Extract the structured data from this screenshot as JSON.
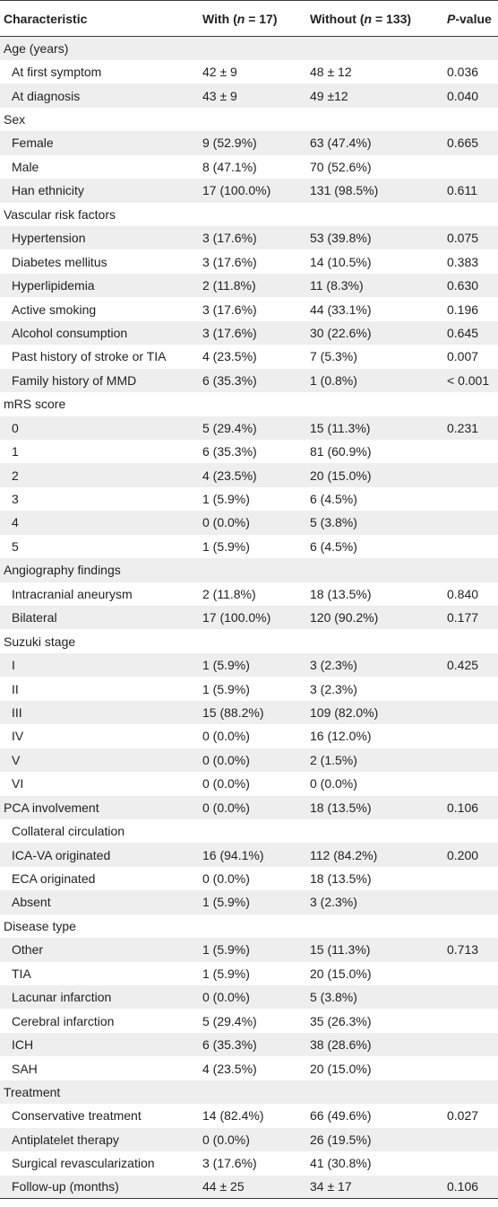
{
  "table": {
    "headers": {
      "characteristic": "Characteristic",
      "with_pre": "With (",
      "with_n": "n",
      "with_post": " = 17)",
      "without_pre": "Without (",
      "without_n": "n",
      "without_post": " = 133)",
      "p_letter": "P",
      "p_rest": "-value"
    },
    "rows": [
      {
        "label": "Age (years)",
        "indent": false,
        "with": "",
        "without": "",
        "p": ""
      },
      {
        "label": "At first symptom",
        "indent": true,
        "with": "42 ± 9",
        "without": "48 ± 12",
        "p": "0.036"
      },
      {
        "label": "At diagnosis",
        "indent": true,
        "with": "43 ± 9",
        "without": "49 ±12",
        "p": "0.040"
      },
      {
        "label": "Sex",
        "indent": false,
        "with": "",
        "without": "",
        "p": ""
      },
      {
        "label": "Female",
        "indent": true,
        "with": "9 (52.9%)",
        "without": "63 (47.4%)",
        "p": "0.665"
      },
      {
        "label": "Male",
        "indent": true,
        "with": "8 (47.1%)",
        "without": "70 (52.6%)",
        "p": ""
      },
      {
        "label": "Han ethnicity",
        "indent": true,
        "with": "17 (100.0%)",
        "without": "131 (98.5%)",
        "p": "0.611"
      },
      {
        "label": "Vascular risk factors",
        "indent": false,
        "with": "",
        "without": "",
        "p": ""
      },
      {
        "label": "Hypertension",
        "indent": true,
        "with": "3 (17.6%)",
        "without": "53 (39.8%)",
        "p": "0.075"
      },
      {
        "label": "Diabetes mellitus",
        "indent": true,
        "with": "3 (17.6%)",
        "without": "14 (10.5%)",
        "p": "0.383"
      },
      {
        "label": "Hyperlipidemia",
        "indent": true,
        "with": "2 (11.8%)",
        "without": "11 (8.3%)",
        "p": "0.630"
      },
      {
        "label": "Active smoking",
        "indent": true,
        "with": "3 (17.6%)",
        "without": "44 (33.1%)",
        "p": "0.196"
      },
      {
        "label": "Alcohol consumption",
        "indent": true,
        "with": "3 (17.6%)",
        "without": "30 (22.6%)",
        "p": "0.645"
      },
      {
        "label": "Past history of stroke or TIA",
        "indent": true,
        "with": "4 (23.5%)",
        "without": "7 (5.3%)",
        "p": "0.007"
      },
      {
        "label": "Family history of MMD",
        "indent": true,
        "with": "6 (35.3%)",
        "without": "1 (0.8%)",
        "p": "< 0.001"
      },
      {
        "label": "mRS score",
        "indent": false,
        "with": "",
        "without": "",
        "p": ""
      },
      {
        "label": "0",
        "indent": true,
        "with": "5 (29.4%)",
        "without": "15 (11.3%)",
        "p": "0.231"
      },
      {
        "label": "1",
        "indent": true,
        "with": "6 (35.3%)",
        "without": "81 (60.9%)",
        "p": ""
      },
      {
        "label": "2",
        "indent": true,
        "with": "4 (23.5%)",
        "without": "20 (15.0%)",
        "p": ""
      },
      {
        "label": "3",
        "indent": true,
        "with": "1 (5.9%)",
        "without": "6 (4.5%)",
        "p": ""
      },
      {
        "label": "4",
        "indent": true,
        "with": "0 (0.0%)",
        "without": "5 (3.8%)",
        "p": ""
      },
      {
        "label": "5",
        "indent": true,
        "with": "1 (5.9%)",
        "without": "6 (4.5%)",
        "p": ""
      },
      {
        "label": "Angiography findings",
        "indent": false,
        "with": "",
        "without": "",
        "p": ""
      },
      {
        "label": "Intracranial aneurysm",
        "indent": true,
        "with": "2 (11.8%)",
        "without": "18 (13.5%)",
        "p": "0.840"
      },
      {
        "label": "Bilateral",
        "indent": true,
        "with": "17 (100.0%)",
        "without": "120 (90.2%)",
        "p": "0.177"
      },
      {
        "label": "Suzuki stage",
        "indent": false,
        "with": "",
        "without": "",
        "p": ""
      },
      {
        "label": "I",
        "indent": true,
        "with": "1 (5.9%)",
        "without": "3 (2.3%)",
        "p": "0.425"
      },
      {
        "label": "II",
        "indent": true,
        "with": "1 (5.9%)",
        "without": "3 (2.3%)",
        "p": ""
      },
      {
        "label": "III",
        "indent": true,
        "with": "15 (88.2%)",
        "without": "109 (82.0%)",
        "p": ""
      },
      {
        "label": "IV",
        "indent": true,
        "with": "0 (0.0%)",
        "without": "16 (12.0%)",
        "p": ""
      },
      {
        "label": "V",
        "indent": true,
        "with": "0 (0.0%)",
        "without": "2 (1.5%)",
        "p": ""
      },
      {
        "label": "VI",
        "indent": true,
        "with": "0 (0.0%)",
        "without": "0 (0.0%)",
        "p": ""
      },
      {
        "label": "PCA involvement",
        "indent": false,
        "with": "0 (0.0%)",
        "without": "18 (13.5%)",
        "p": "0.106"
      },
      {
        "label": "Collateral circulation",
        "indent": true,
        "with": "",
        "without": "",
        "p": ""
      },
      {
        "label": "ICA-VA originated",
        "indent": true,
        "with": "16 (94.1%)",
        "without": "112 (84.2%)",
        "p": "0.200"
      },
      {
        "label": "ECA originated",
        "indent": true,
        "with": "0 (0.0%)",
        "without": "18 (13.5%)",
        "p": ""
      },
      {
        "label": "Absent",
        "indent": true,
        "with": "1 (5.9%)",
        "without": "3 (2.3%)",
        "p": ""
      },
      {
        "label": "Disease type",
        "indent": false,
        "with": "",
        "without": "",
        "p": ""
      },
      {
        "label": "Other",
        "indent": true,
        "with": "1 (5.9%)",
        "without": "15 (11.3%)",
        "p": "0.713"
      },
      {
        "label": "TIA",
        "indent": true,
        "with": "1 (5.9%)",
        "without": "20 (15.0%)",
        "p": ""
      },
      {
        "label": "Lacunar infarction",
        "indent": true,
        "with": "0 (0.0%)",
        "without": "5 (3.8%)",
        "p": ""
      },
      {
        "label": "Cerebral infarction",
        "indent": true,
        "with": "5 (29.4%)",
        "without": "35 (26.3%)",
        "p": ""
      },
      {
        "label": "ICH",
        "indent": true,
        "with": "6 (35.3%)",
        "without": "38 (28.6%)",
        "p": ""
      },
      {
        "label": "SAH",
        "indent": true,
        "with": "4 (23.5%)",
        "without": "20 (15.0%)",
        "p": ""
      },
      {
        "label": "Treatment",
        "indent": false,
        "with": "",
        "without": "",
        "p": ""
      },
      {
        "label": "Conservative treatment",
        "indent": true,
        "with": "14 (82.4%)",
        "without": "66 (49.6%)",
        "p": "0.027"
      },
      {
        "label": "Antiplatelet therapy",
        "indent": true,
        "with": "0 (0.0%)",
        "without": "26 (19.5%)",
        "p": ""
      },
      {
        "label": "Surgical revascularization",
        "indent": true,
        "with": "3 (17.6%)",
        "without": "41 (30.8%)",
        "p": ""
      },
      {
        "label": "Follow-up (months)",
        "indent": true,
        "with": "44 ± 25",
        "without": "34 ± 17",
        "p": "0.106"
      }
    ]
  }
}
